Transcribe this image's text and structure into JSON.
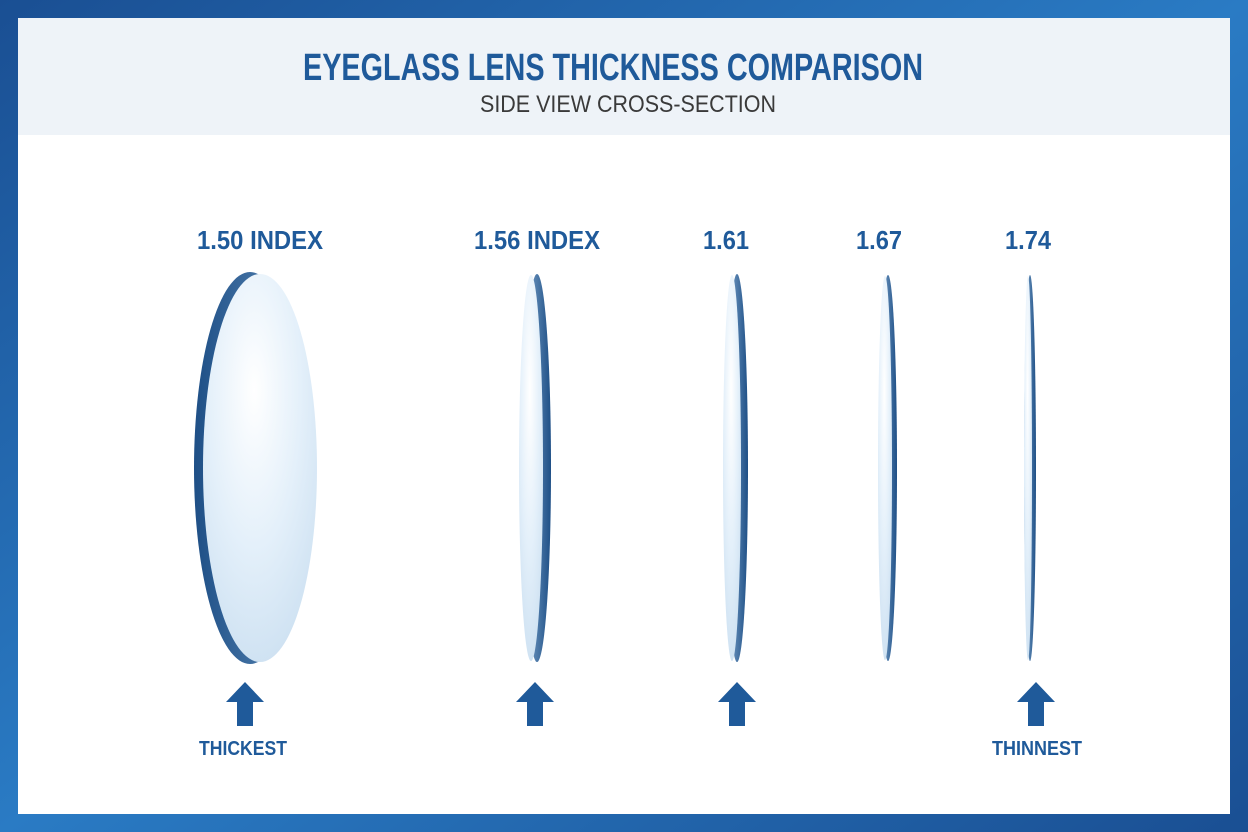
{
  "header": {
    "title": "EYEGLASS LENS THICKNESS COMPARISON",
    "subtitle": "SIDE VIEW CROSS-SECTION"
  },
  "lenses": [
    {
      "label": "1.50 INDEX"
    },
    {
      "label": "1.56 INDEX"
    },
    {
      "label": "1.61"
    },
    {
      "label": "1.67"
    },
    {
      "label": "1.74"
    }
  ],
  "annotations": {
    "thickest": "THICKEST",
    "thinnest": "THINNEST"
  }
}
